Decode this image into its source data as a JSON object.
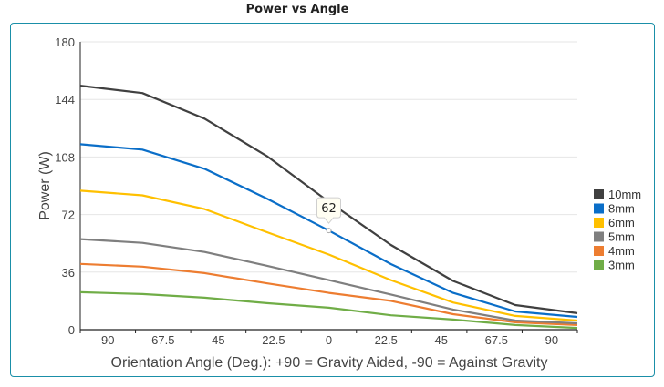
{
  "chart_data": {
    "type": "line",
    "title": "Power vs Angle",
    "xlabel": "Orientation Angle (Deg.): +90 = Gravity Aided, -90 = Against Gravity",
    "ylabel": "Power (W)",
    "categories": [
      "90",
      "67.5",
      "45",
      "22.5",
      "0",
      "-22.5",
      "-45",
      "-67.5",
      "-90"
    ],
    "ylim": [
      0,
      180
    ],
    "yticks": [
      0,
      36,
      72,
      108,
      144,
      180
    ],
    "grid": true,
    "legend": "right",
    "series": [
      {
        "name": "10mm",
        "color": "#404040",
        "values": [
          152.6,
          148,
          132,
          108.6,
          80,
          53,
          30.5,
          15.4,
          10.3
        ]
      },
      {
        "name": "8mm",
        "color": "#0a6ec8",
        "values": [
          116,
          112.6,
          100.6,
          82,
          62,
          41,
          23,
          11.4,
          8
        ]
      },
      {
        "name": "6mm",
        "color": "#ffc000",
        "values": [
          86.9,
          84,
          75.4,
          61,
          47,
          31,
          17,
          8.6,
          5.7
        ]
      },
      {
        "name": "5mm",
        "color": "#7f7f7f",
        "values": [
          56.6,
          54.3,
          48.6,
          40,
          31,
          22,
          12.6,
          5.7,
          4
        ]
      },
      {
        "name": "4mm",
        "color": "#ed7d31",
        "values": [
          41.1,
          39.4,
          35.4,
          29,
          23,
          18,
          9.7,
          4.6,
          2.9
        ]
      },
      {
        "name": "3mm",
        "color": "#70ad47",
        "values": [
          23.4,
          22.3,
          20,
          16.6,
          13.7,
          9,
          6.3,
          2.9,
          1.1
        ]
      }
    ],
    "tooltip": {
      "series": "8mm",
      "category": "0",
      "value": "62"
    }
  }
}
